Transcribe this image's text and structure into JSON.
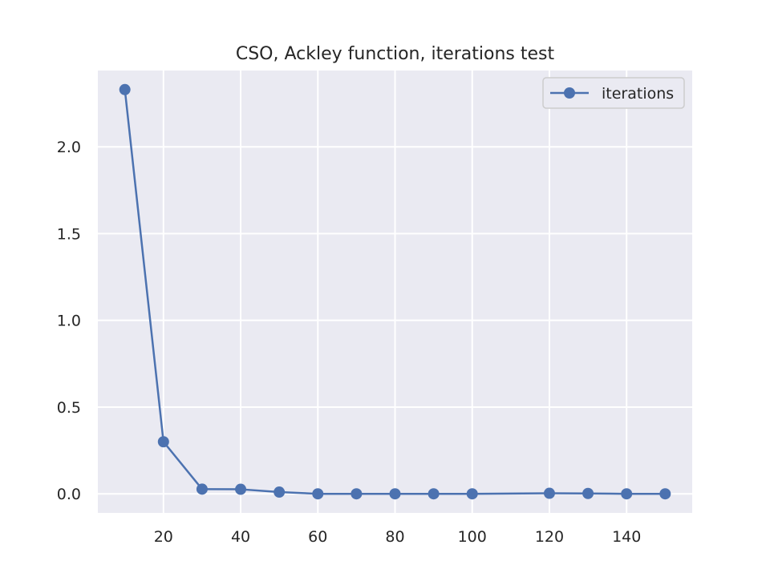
{
  "chart_data": {
    "type": "line",
    "title": "CSO, Ackley function, iterations test",
    "xlabel": "",
    "ylabel": "",
    "xlim": [
      3.0,
      157.0
    ],
    "ylim": [
      -0.11,
      2.44
    ],
    "x_ticks": [
      20,
      40,
      60,
      80,
      100,
      120,
      140
    ],
    "y_ticks": [
      0.0,
      0.5,
      1.0,
      1.5,
      2.0
    ],
    "x_tick_labels": [
      "20",
      "40",
      "60",
      "80",
      "100",
      "120",
      "140"
    ],
    "y_tick_labels": [
      "0.0",
      "0.5",
      "1.0",
      "1.5",
      "2.0"
    ],
    "grid": true,
    "legend_position": "top-right",
    "colors": {
      "plot_background": "#eaeaf2",
      "grid": "#ffffff",
      "series_line": "#4c72b0",
      "text": "#262626",
      "legend_background": "#eaeaf2",
      "legend_border": "#cccccc"
    },
    "series": [
      {
        "name": "iterations",
        "marker": "circle",
        "x": [
          10,
          20,
          30,
          40,
          50,
          60,
          70,
          80,
          90,
          100,
          120,
          130,
          140,
          150
        ],
        "y": [
          2.33,
          0.3,
          0.027,
          0.026,
          0.01,
          0.0,
          0.0,
          0.0,
          0.0,
          0.0,
          0.003,
          0.002,
          0.0,
          0.0
        ]
      }
    ]
  }
}
